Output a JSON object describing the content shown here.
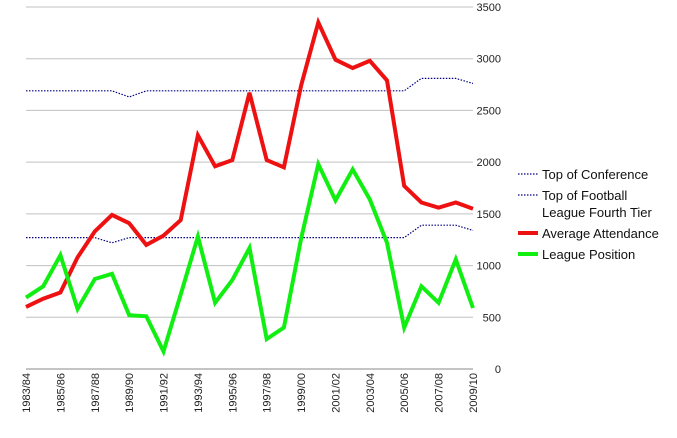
{
  "chart_data": {
    "type": "line",
    "title": "",
    "xlabel": "",
    "ylabel": "",
    "ylim": [
      0,
      3500
    ],
    "y_ticks": [
      "0",
      "500",
      "1000",
      "1500",
      "2000",
      "2500",
      "3000",
      "3500"
    ],
    "y_axis_side": "right",
    "grid": "horizontal",
    "legend_position": "right",
    "x_tick_labels": [
      "1983/84",
      "1985/86",
      "1987/88",
      "1989/90",
      "1991/92",
      "1993/94",
      "1995/96",
      "1997/98",
      "1999/00",
      "2001/02",
      "2003/04",
      "2005/06",
      "2007/08",
      "2009/10"
    ],
    "seasons": [
      "1983/84",
      "1984/85",
      "1985/86",
      "1986/87",
      "1987/88",
      "1988/89",
      "1989/90",
      "1990/91",
      "1991/92",
      "1992/93",
      "1993/94",
      "1994/95",
      "1995/96",
      "1996/97",
      "1997/98",
      "1998/99",
      "1999/00",
      "2000/01",
      "2001/02",
      "2002/03",
      "2003/04",
      "2004/05",
      "2005/06",
      "2006/07",
      "2007/08",
      "2008/09",
      "2009/10"
    ],
    "series": [
      {
        "name": "Top of Conference",
        "style": "dotted",
        "color": "#000080",
        "values": [
          2690,
          2690,
          2690,
          2690,
          2690,
          2690,
          2630,
          2690,
          2690,
          2690,
          2690,
          2690,
          2690,
          2690,
          2690,
          2690,
          2690,
          2690,
          2690,
          2690,
          2690,
          2690,
          2690,
          2810,
          2810,
          2810,
          2760
        ]
      },
      {
        "name": "Top of Football League Fourth Tier",
        "legend_lines": [
          "Top of Football",
          "League Fourth Tier"
        ],
        "style": "dotted",
        "color": "#000080",
        "values": [
          1270,
          1270,
          1270,
          1270,
          1270,
          1220,
          1270,
          1270,
          1270,
          1270,
          1270,
          1270,
          1270,
          1270,
          1270,
          1270,
          1270,
          1270,
          1270,
          1270,
          1270,
          1270,
          1270,
          1390,
          1390,
          1390,
          1340
        ]
      },
      {
        "name": "Average Attendance",
        "style": "solid",
        "color": "#ee1111",
        "values": [
          600,
          680,
          740,
          1080,
          1330,
          1490,
          1410,
          1200,
          1290,
          1440,
          2260,
          1960,
          2020,
          2670,
          2020,
          1950,
          2740,
          3350,
          2990,
          2910,
          2980,
          2790,
          1770,
          1610,
          1560,
          1610,
          1550
        ]
      },
      {
        "name": "League Position",
        "style": "solid",
        "color": "#11ee11",
        "values": [
          690,
          800,
          1100,
          580,
          870,
          920,
          520,
          510,
          170,
          720,
          1280,
          640,
          860,
          1170,
          290,
          400,
          1260,
          1980,
          1630,
          1930,
          1640,
          1220,
          400,
          800,
          640,
          1060,
          590
        ]
      }
    ]
  }
}
